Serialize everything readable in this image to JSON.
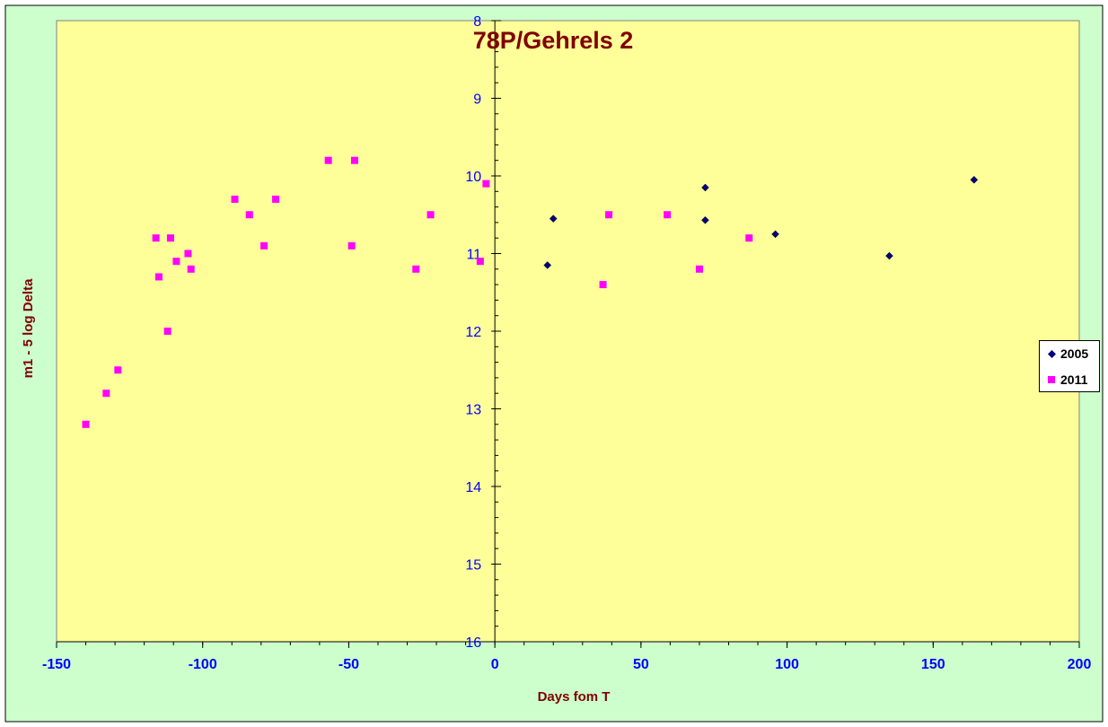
{
  "chart_data": {
    "type": "scatter",
    "title": "78P/Gehrels 2",
    "xlabel": "Days fom T",
    "ylabel": "m1 - 5 log Delta",
    "xlim": [
      -150,
      200
    ],
    "ylim": [
      8,
      16
    ],
    "y_reversed": true,
    "x_ticks": [
      -150,
      -100,
      -50,
      0,
      50,
      100,
      150,
      200
    ],
    "y_ticks": [
      8,
      9,
      10,
      11,
      12,
      13,
      14,
      15,
      16
    ],
    "grid": false,
    "legend_position": "right",
    "series": [
      {
        "name": "2005",
        "marker": "diamond",
        "color": "#000080",
        "points": [
          [
            18,
            11.15
          ],
          [
            20,
            10.55
          ],
          [
            72,
            10.15
          ],
          [
            72,
            10.57
          ],
          [
            96,
            10.75
          ],
          [
            135,
            11.03
          ],
          [
            164,
            10.05
          ]
        ]
      },
      {
        "name": "2011",
        "marker": "square",
        "color": "#ff00ff",
        "points": [
          [
            -140,
            13.2
          ],
          [
            -133,
            12.8
          ],
          [
            -129,
            12.5
          ],
          [
            -116,
            10.8
          ],
          [
            -115,
            11.3
          ],
          [
            -112,
            12.0
          ],
          [
            -111,
            10.8
          ],
          [
            -109,
            11.1
          ],
          [
            -105,
            11.0
          ],
          [
            -104,
            11.2
          ],
          [
            -89,
            10.3
          ],
          [
            -84,
            10.5
          ],
          [
            -79,
            10.9
          ],
          [
            -75,
            10.3
          ],
          [
            -57,
            9.8
          ],
          [
            -49,
            10.9
          ],
          [
            -48,
            9.8
          ],
          [
            -27,
            11.2
          ],
          [
            -22,
            10.5
          ],
          [
            -5,
            11.1
          ],
          [
            -3,
            10.1
          ],
          [
            37,
            11.4
          ],
          [
            39,
            10.5
          ],
          [
            59,
            10.5
          ],
          [
            70,
            11.2
          ],
          [
            87,
            10.8
          ]
        ]
      }
    ]
  },
  "colors": {
    "outer_background": "#ccffcc",
    "plot_background": "#ffff99",
    "title_color": "#800000",
    "axis_title_color": "#800000",
    "tick_label_color": "#0000ff"
  }
}
